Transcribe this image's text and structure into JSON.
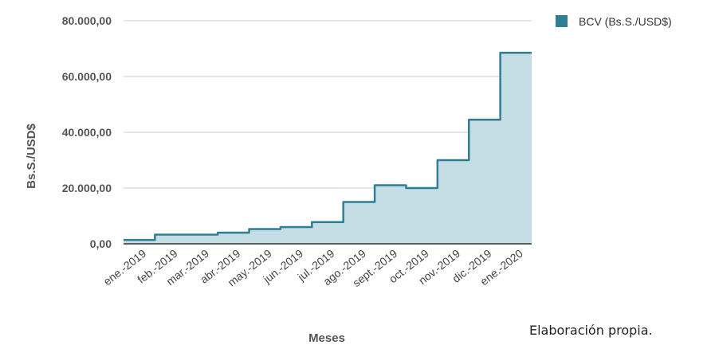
{
  "chart_data": {
    "type": "area",
    "step": true,
    "categories": [
      "ene.-2019",
      "feb.-2019",
      "mar.-2019",
      "abr.-2019",
      "may.-2019",
      "jun.-2019",
      "jul.-2019",
      "ago.-2019",
      "sept.-2019",
      "oct.-2019",
      "nov.-2019",
      "dic.-2019",
      "ene.-2020"
    ],
    "series": [
      {
        "name": "BCV (Bs.S./USD$)",
        "values": [
          1400,
          3300,
          3300,
          4000,
          5300,
          6000,
          7800,
          15000,
          21000,
          20000,
          30000,
          44500,
          68500
        ]
      }
    ],
    "yticks": [
      "80.000,00",
      "60.000,00",
      "40.000,00",
      "20.000,00",
      "0,00"
    ],
    "ytick_values": [
      80000,
      60000,
      40000,
      20000,
      0
    ],
    "ylim": [
      0,
      80000
    ],
    "xlabel": "Meses",
    "ylabel": "Bs.S./USD$",
    "grid": true,
    "legend_position": "top-right",
    "colors": {
      "line": "#2e7e96",
      "fill": "#c5dde4",
      "grid": "#cccccc",
      "axis": "#333333"
    }
  },
  "footer": {
    "credit": "Elaboración propia."
  }
}
